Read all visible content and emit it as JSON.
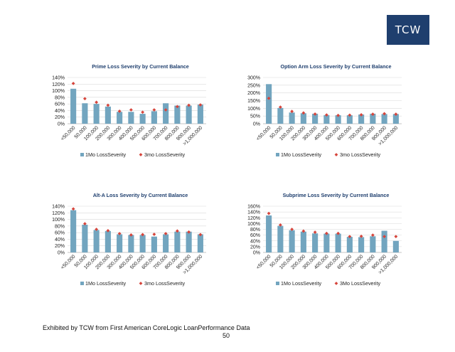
{
  "logo_text": "TCW",
  "footer": {
    "note": "Exhibited by TCW from First American CoreLogic LoanPerformance Data",
    "page_number": "50"
  },
  "colors": {
    "bar": "#72a5bf",
    "marker": "#d6453c",
    "title": "#1f3f6e",
    "grid": "#d9d9d9"
  },
  "chart_data": [
    {
      "type": "bar",
      "title": "Prime Loss Severity by Current Balance",
      "categories": [
        "<50,000",
        "50,000",
        "100,000",
        "200,000",
        "300,000",
        "400,000",
        "500,000",
        "600,000",
        "700,000",
        "800,000",
        "900,000",
        ">1,000,000"
      ],
      "series": [
        {
          "name": "1Mo LossSeverity",
          "kind": "bar",
          "values": [
            106,
            62,
            60,
            52,
            36,
            36,
            30,
            38,
            62,
            55,
            55,
            58
          ]
        },
        {
          "name": "3mo LossSeverity",
          "kind": "marker",
          "values": [
            122,
            76,
            65,
            56,
            38,
            42,
            35,
            42,
            42,
            52,
            56,
            57
          ]
        }
      ],
      "ylim": [
        0,
        140
      ],
      "yticks": [
        "0%",
        "20%",
        "40%",
        "60%",
        "80%",
        "100%",
        "120%",
        "140%"
      ],
      "grid": true,
      "legend": "bottom"
    },
    {
      "type": "bar",
      "title": "Option Arm Loss Severity by Current Balance",
      "categories": [
        "<50,000",
        "50,000",
        "100,000",
        "200,000",
        "300,000",
        "400,000",
        "500,000",
        "600,000",
        "700,000",
        "800,000",
        "900,000",
        ">1,000,000"
      ],
      "series": [
        {
          "name": "1Mo LossSeverity",
          "kind": "bar",
          "values": [
            257,
            102,
            73,
            68,
            65,
            56,
            55,
            55,
            60,
            65,
            63,
            63
          ]
        },
        {
          "name": "3mo LossSeverity",
          "kind": "marker",
          "values": [
            165,
            108,
            80,
            70,
            63,
            57,
            54,
            56,
            58,
            62,
            65,
            62
          ]
        }
      ],
      "ylim": [
        0,
        300
      ],
      "yticks": [
        "0%",
        "50%",
        "100%",
        "150%",
        "200%",
        "250%",
        "300%"
      ],
      "grid": true,
      "legend": "bottom"
    },
    {
      "type": "bar",
      "title": "Alt-A Loss Severity by Current Balance",
      "categories": [
        "<50,000",
        "50,000",
        "100,000",
        "200,000",
        "300,000",
        "400,000",
        "500,000",
        "600,000",
        "700,000",
        "800,000",
        "900,000",
        ">1,000,000"
      ],
      "series": [
        {
          "name": "1Mo LossSeverity",
          "kind": "bar",
          "values": [
            128,
            84,
            68,
            65,
            55,
            53,
            53,
            48,
            55,
            63,
            63,
            55
          ]
        },
        {
          "name": "3mo LossSeverity",
          "kind": "marker",
          "values": [
            132,
            87,
            70,
            66,
            57,
            53,
            54,
            55,
            57,
            65,
            62,
            54
          ]
        }
      ],
      "ylim": [
        0,
        140
      ],
      "yticks": [
        "0%",
        "20%",
        "40%",
        "60%",
        "80%",
        "100%",
        "120%",
        "140%"
      ],
      "grid": true,
      "legend": "bottom"
    },
    {
      "type": "bar",
      "title": "Subprime Loss Severity by Current Balance",
      "categories": [
        "<50,000",
        "50,000",
        "100,000",
        "200,000",
        "300,000",
        "400,000",
        "500,000",
        "600,000",
        "700,000",
        "800,000",
        "900,000",
        ">1,000,000"
      ],
      "series": [
        {
          "name": "1Mo LossSeverity",
          "kind": "bar",
          "values": [
            128,
            92,
            77,
            72,
            66,
            65,
            65,
            54,
            53,
            56,
            75,
            40
          ]
        },
        {
          "name": "3Mo LossSeverity",
          "kind": "marker",
          "values": [
            135,
            95,
            80,
            74,
            70,
            66,
            66,
            55,
            56,
            60,
            55,
            55
          ]
        }
      ],
      "ylim": [
        0,
        160
      ],
      "yticks": [
        "0%",
        "20%",
        "40%",
        "60%",
        "80%",
        "100%",
        "120%",
        "140%",
        "160%"
      ],
      "grid": true,
      "legend": "bottom"
    }
  ]
}
